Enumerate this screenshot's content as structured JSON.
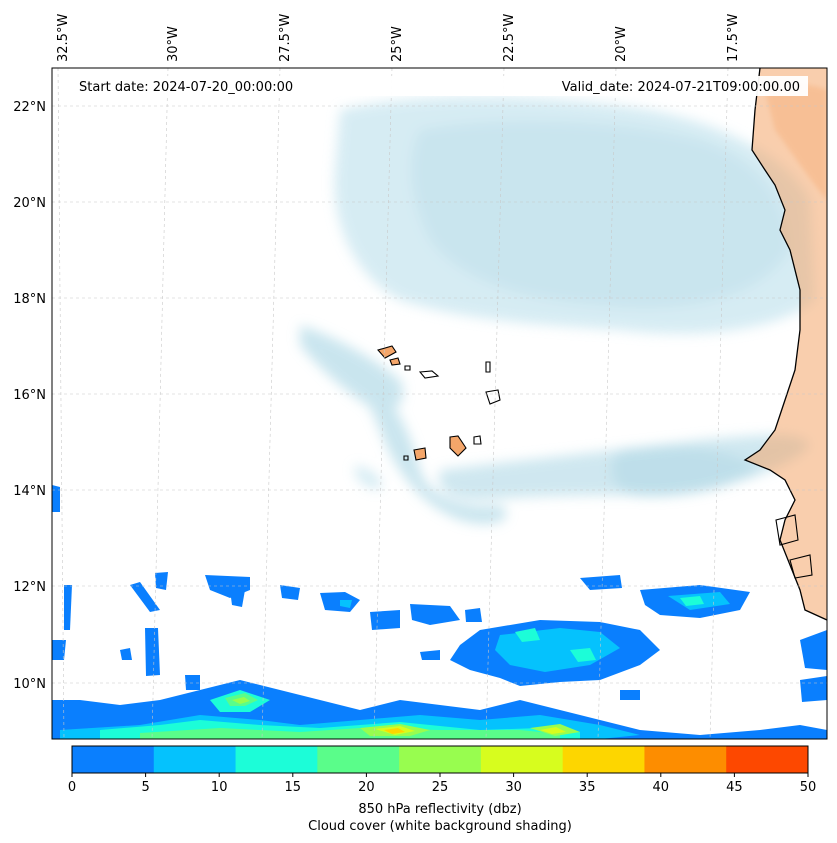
{
  "map": {
    "start_date": "Start date: 2024-07-20_00:00:00",
    "valid_date": "Valid_date: 2024-07-21T09:00:00.00",
    "lon_labels": [
      "32.5°W",
      "30°W",
      "27.5°W",
      "25°W",
      "22.5°W",
      "20°W",
      "17.5°W"
    ],
    "lat_labels": [
      "22°N",
      "20°N",
      "18°N",
      "16°N",
      "14°N",
      "12°N",
      "10°N"
    ],
    "colorbar": {
      "ticks": [
        "0",
        "5",
        "10",
        "15",
        "20",
        "25",
        "30",
        "35",
        "40",
        "45",
        "50"
      ],
      "colors": [
        "#0a7ffe",
        "#05c2fd",
        "#1cfdd8",
        "#5afd8a",
        "#98fd4f",
        "#d7fd1e",
        "#fdd600",
        "#fd8d00",
        "#fd4800"
      ],
      "label_line1": "850 hPa reflectivity (dbz)",
      "label_line2": "Cloud cover (white background shading)"
    },
    "colors": {
      "land_orange": "#f4a66a",
      "cloud_blue": "#aed8e6",
      "coastline": "#000000",
      "grid": "#c8c8c8"
    }
  }
}
